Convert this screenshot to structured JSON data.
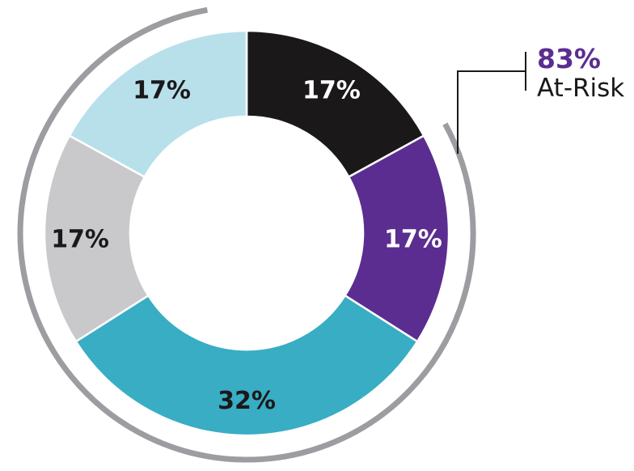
{
  "chart_data": {
    "type": "pie",
    "subtype": "donut",
    "title": "",
    "direction": "clockwise",
    "start_angle_deg": 0,
    "categories": [
      "black-segment",
      "purple-segment",
      "teal-segment",
      "gray-segment",
      "light-blue-segment"
    ],
    "values": [
      17,
      17,
      32,
      17,
      17
    ],
    "segments": [
      {
        "label": "17%",
        "value": 17,
        "color": "#1b181a",
        "text_color": "#ffffff"
      },
      {
        "label": "17%",
        "value": 17,
        "color": "#5b2d90",
        "text_color": "#ffffff"
      },
      {
        "label": "32%",
        "value": 32,
        "color": "#38adc4",
        "text_color": "#1b181a"
      },
      {
        "label": "17%",
        "value": 17,
        "color": "#c9c9cb",
        "text_color": "#1b181a"
      },
      {
        "label": "17%",
        "value": 17,
        "color": "#b7e0ea",
        "text_color": "#1b181a"
      }
    ],
    "annotation": {
      "value": "83%",
      "label": "At-Risk",
      "value_color": "#5b2d90",
      "label_color": "#1b181a"
    },
    "outer_arc": {
      "percent": 83,
      "color": "#9d9da1",
      "start_angle_deg": 61.2,
      "end_angle_deg": 350,
      "connector_color": "#1b181a"
    }
  }
}
